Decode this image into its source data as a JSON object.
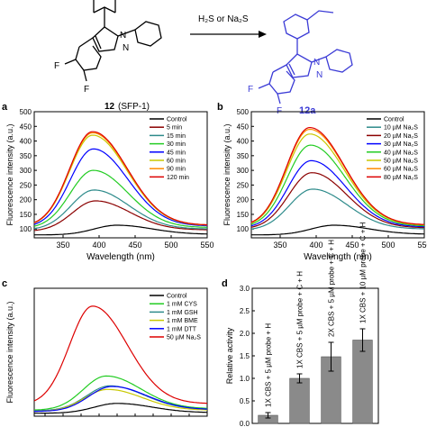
{
  "scheme": {
    "reactant_label": "12",
    "reactant_name": "(SFP-1)",
    "product_label": "12a",
    "reagent": "H₂S or Na₂S",
    "reactant_atoms": {
      "n1": "N",
      "n2": "N",
      "f1": "F",
      "f2": "F"
    },
    "product_atoms": {
      "n1": "N",
      "n2": "N",
      "f1": "F",
      "f2": "F"
    },
    "colors": {
      "reactant": "#000000",
      "product": "#3b3bd6"
    }
  },
  "chart_data": [
    {
      "panel": "a",
      "type": "line",
      "xlabel": "Wavelength (nm)",
      "ylabel": "Fluorescence intensity (a.u.)",
      "xlim": [
        310,
        550
      ],
      "ylim": [
        70,
        500
      ],
      "xticks": [
        350,
        400,
        450,
        500,
        550
      ],
      "yticks": [
        100,
        150,
        200,
        250,
        300,
        350,
        400,
        450,
        500
      ],
      "legend_position": "top-right",
      "series": [
        {
          "name": "Control",
          "color": "#000000",
          "peak_x": 425,
          "peak_y": 113,
          "end_y": 82,
          "start_y": 80
        },
        {
          "name": "5 min",
          "color": "#8b0000",
          "peak_x": 395,
          "peak_y": 196,
          "end_y": 97,
          "start_y": 92
        },
        {
          "name": "15 min",
          "color": "#2e8b8b",
          "peak_x": 393,
          "peak_y": 233,
          "end_y": 100,
          "start_y": 97
        },
        {
          "name": "30 min",
          "color": "#22cc22",
          "peak_x": 392,
          "peak_y": 300,
          "end_y": 105,
          "start_y": 102
        },
        {
          "name": "45 min",
          "color": "#0000ff",
          "peak_x": 392,
          "peak_y": 373,
          "end_y": 110,
          "start_y": 106
        },
        {
          "name": "60 min",
          "color": "#c8c800",
          "peak_x": 391,
          "peak_y": 420,
          "end_y": 112,
          "start_y": 108
        },
        {
          "name": "90 min",
          "color": "#ff8c00",
          "peak_x": 391,
          "peak_y": 428,
          "end_y": 113,
          "start_y": 108
        },
        {
          "name": "120 min",
          "color": "#dd0000",
          "peak_x": 391,
          "peak_y": 432,
          "end_y": 113,
          "start_y": 109
        }
      ]
    },
    {
      "panel": "b",
      "type": "line",
      "xlabel": "Wavelength (nm)",
      "ylabel": "Fluorescence intensity (a.u.)",
      "xlim": [
        310,
        550
      ],
      "ylim": [
        70,
        500
      ],
      "xticks": [
        350,
        400,
        450,
        500,
        550
      ],
      "yticks": [
        100,
        150,
        200,
        250,
        300,
        350,
        400,
        450,
        500
      ],
      "legend_position": "top-right",
      "series": [
        {
          "name": "Control",
          "color": "#000000",
          "peak_x": 425,
          "peak_y": 113,
          "end_y": 82,
          "start_y": 80
        },
        {
          "name": "10 µM Na₂S",
          "color": "#2e8b8b",
          "peak_x": 395,
          "peak_y": 236,
          "end_y": 100,
          "start_y": 96
        },
        {
          "name": "20 µM Na₂S",
          "color": "#8b0000",
          "peak_x": 394,
          "peak_y": 292,
          "end_y": 104,
          "start_y": 100
        },
        {
          "name": "30 µM Na₂S",
          "color": "#0000ff",
          "peak_x": 393,
          "peak_y": 333,
          "end_y": 107,
          "start_y": 103
        },
        {
          "name": "40 µM Na₂S",
          "color": "#22cc22",
          "peak_x": 392,
          "peak_y": 386,
          "end_y": 110,
          "start_y": 106
        },
        {
          "name": "50 µM Na₂S",
          "color": "#c8c800",
          "peak_x": 391,
          "peak_y": 424,
          "end_y": 113,
          "start_y": 108
        },
        {
          "name": "60 µM Na₂S",
          "color": "#ff8c00",
          "peak_x": 391,
          "peak_y": 440,
          "end_y": 114,
          "start_y": 109
        },
        {
          "name": "80 µM Na₂S",
          "color": "#dd0000",
          "peak_x": 391,
          "peak_y": 446,
          "end_y": 114,
          "start_y": 109
        }
      ]
    },
    {
      "panel": "c",
      "type": "line",
      "xlabel": "",
      "ylabel": "Fluorescence intensity (a.u.)",
      "xlim": [
        310,
        550
      ],
      "ylim": [
        70,
        500
      ],
      "legend_position": "top-right",
      "series": [
        {
          "name": "Control",
          "color": "#000000",
          "peak_x": 425,
          "peak_y": 113,
          "end_y": 82,
          "start_y": 80
        },
        {
          "name": "1 mM CYS",
          "color": "#22cc22",
          "peak_x": 410,
          "peak_y": 205,
          "end_y": 95,
          "start_y": 90
        },
        {
          "name": "1 mM GSH",
          "color": "#2e8b8b",
          "peak_x": 415,
          "peak_y": 172,
          "end_y": 92,
          "start_y": 88
        },
        {
          "name": "1 mM BME",
          "color": "#c8c800",
          "peak_x": 412,
          "peak_y": 160,
          "end_y": 90,
          "start_y": 86
        },
        {
          "name": "1 mM DTT",
          "color": "#0000ff",
          "peak_x": 418,
          "peak_y": 170,
          "end_y": 92,
          "start_y": 86
        },
        {
          "name": "50 µM Na₂S",
          "color": "#dd0000",
          "peak_x": 391,
          "peak_y": 440,
          "end_y": 112,
          "start_y": 108
        }
      ]
    },
    {
      "panel": "d",
      "type": "bar",
      "ylabel": "Relative activity",
      "ylim": [
        0,
        3.0
      ],
      "yticks": [
        0.0,
        0.5,
        1.0,
        1.5,
        2.0,
        2.5,
        3.0
      ],
      "categories": [
        "1X CBS + 5 µM probe + H",
        "1X CBS + 5 µM probe + C + H",
        "2X CBS + 5 µM probe + C + H",
        "1X CBS + 10 µM probe + C + H"
      ],
      "values": [
        0.18,
        1.0,
        1.48,
        1.85
      ],
      "errors": [
        0.06,
        0.1,
        0.32,
        0.25
      ],
      "bar_color": "#8a8a8a"
    }
  ]
}
